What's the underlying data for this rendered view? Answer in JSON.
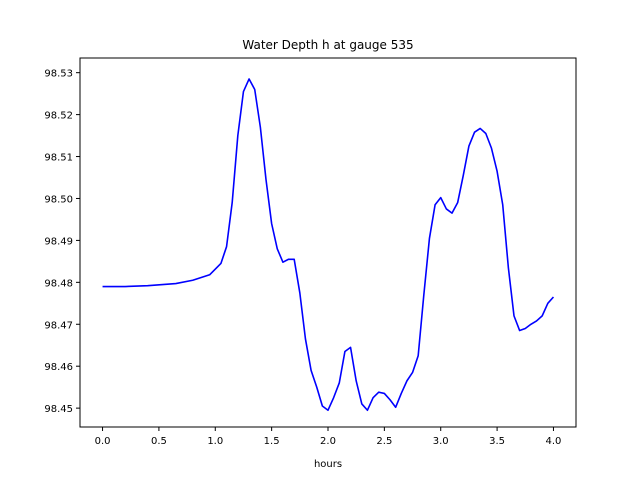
{
  "chart_data": {
    "type": "line",
    "title": "Water Depth h at gauge 535",
    "xlabel": "hours",
    "ylabel": "",
    "xlim": [
      -0.2,
      4.2
    ],
    "ylim": [
      98.4455,
      98.5335
    ],
    "grid": false,
    "x_ticks": [
      0.0,
      0.5,
      1.0,
      1.5,
      2.0,
      2.5,
      3.0,
      3.5,
      4.0
    ],
    "x_tick_labels": [
      "0.0",
      "0.5",
      "1.0",
      "1.5",
      "2.0",
      "2.5",
      "3.0",
      "3.5",
      "4.0"
    ],
    "y_ticks": [
      98.45,
      98.46,
      98.47,
      98.48,
      98.49,
      98.5,
      98.51,
      98.52,
      98.53
    ],
    "y_tick_labels": [
      "98.45",
      "98.46",
      "98.47",
      "98.48",
      "98.49",
      "98.50",
      "98.51",
      "98.52",
      "98.53"
    ],
    "series": [
      {
        "color": "#0000ff",
        "x": [
          0.0,
          0.2,
          0.4,
          0.65,
          0.8,
          0.95,
          1.05,
          1.1,
          1.15,
          1.2,
          1.25,
          1.3,
          1.35,
          1.4,
          1.45,
          1.5,
          1.55,
          1.6,
          1.65,
          1.7,
          1.75,
          1.8,
          1.85,
          1.9,
          1.95,
          2.0,
          2.05,
          2.1,
          2.15,
          2.2,
          2.25,
          2.3,
          2.35,
          2.4,
          2.45,
          2.5,
          2.55,
          2.6,
          2.65,
          2.7,
          2.75,
          2.8,
          2.85,
          2.9,
          2.95,
          3.0,
          3.05,
          3.1,
          3.15,
          3.2,
          3.25,
          3.3,
          3.35,
          3.4,
          3.45,
          3.5,
          3.55,
          3.6,
          3.65,
          3.7,
          3.75,
          3.8,
          3.85,
          3.9,
          3.95,
          4.0
        ],
        "y": [
          98.479,
          98.479,
          98.4792,
          98.4797,
          98.4805,
          98.4818,
          98.4845,
          98.4885,
          98.499,
          98.515,
          98.5255,
          98.5285,
          98.526,
          98.517,
          98.5045,
          98.494,
          98.488,
          98.4848,
          98.4855,
          98.4855,
          98.4775,
          98.4665,
          98.459,
          98.455,
          98.4505,
          98.4495,
          98.4525,
          98.456,
          98.4635,
          98.4645,
          98.4565,
          98.451,
          98.4495,
          98.4525,
          98.4538,
          98.4535,
          98.452,
          98.4502,
          98.4535,
          98.4565,
          98.4585,
          98.4625,
          98.477,
          98.4905,
          98.4985,
          98.5002,
          98.4975,
          98.4965,
          98.499,
          98.5055,
          98.5125,
          98.5158,
          98.5167,
          98.5155,
          98.512,
          98.5065,
          98.4985,
          98.4835,
          98.472,
          98.4685,
          98.469,
          98.47,
          98.4708,
          98.472,
          98.475,
          98.4765
        ]
      }
    ]
  }
}
